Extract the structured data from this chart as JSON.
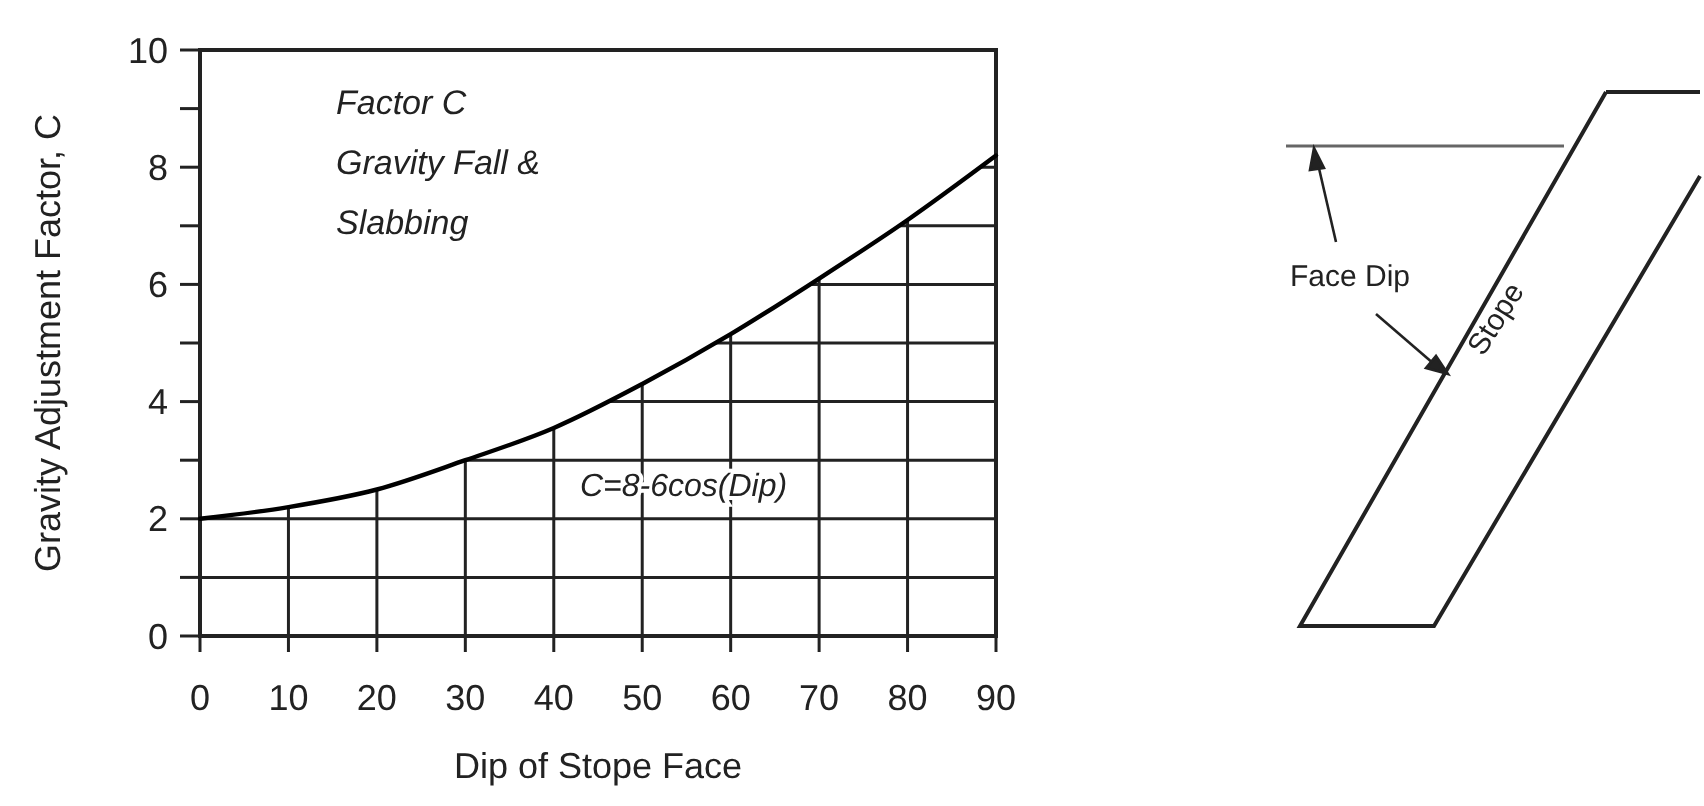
{
  "chart_data": {
    "type": "line",
    "xlabel": "Dip of Stope Face",
    "ylabel": "Gravity Adjustment Factor, C",
    "x": [
      0,
      10,
      20,
      30,
      40,
      50,
      60,
      70,
      80,
      90
    ],
    "series": [
      {
        "color": "#000000",
        "values": [
          2.0,
          2.2,
          2.5,
          3.0,
          3.55,
          4.3,
          5.15,
          6.1,
          7.1,
          8.2
        ]
      }
    ],
    "xlim": [
      0,
      90
    ],
    "xticks": [
      0,
      10,
      20,
      30,
      40,
      50,
      60,
      70,
      80,
      90
    ],
    "ylim": [
      0,
      10
    ],
    "yticks": [
      0,
      {
        "value": 1,
        "label": null
      },
      2,
      {
        "value": 3,
        "label": null
      },
      4,
      {
        "value": 5,
        "label": null
      },
      6,
      {
        "value": 7,
        "label": null
      },
      8,
      {
        "value": 9,
        "label": null
      },
      10
    ],
    "grid": true,
    "marker": "none",
    "line_style": "solid",
    "annotations": [
      "Factor C",
      "Gravity Fall &",
      "Slabbing",
      "C=8-6cos(Dip)",
      "Face Dip",
      "Stope"
    ]
  }
}
